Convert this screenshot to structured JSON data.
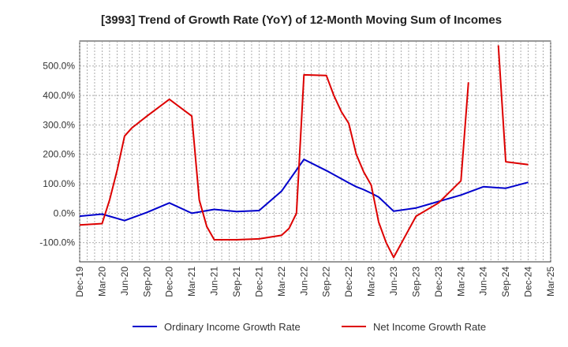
{
  "chart_data": {
    "type": "line",
    "title": "[3993]  Trend of Growth Rate (YoY) of 12-Month Moving Sum of Incomes",
    "xlabel": "",
    "ylabel": "",
    "x_ticks": [
      "Dec-19",
      "Mar-20",
      "Jun-20",
      "Sep-20",
      "Dec-20",
      "Mar-21",
      "Jun-21",
      "Sep-21",
      "Dec-21",
      "Mar-22",
      "Jun-22",
      "Sep-22",
      "Dec-22",
      "Mar-23",
      "Jun-23",
      "Sep-23",
      "Dec-23",
      "Mar-24",
      "Jun-24",
      "Sep-24",
      "Dec-24",
      "Mar-25"
    ],
    "y_ticks": [
      "-100.0%",
      "0.0%",
      "100.0%",
      "200.0%",
      "300.0%",
      "400.0%",
      "500.0%"
    ],
    "y_tick_values": [
      -100,
      0,
      100,
      200,
      300,
      400,
      500
    ],
    "ylim": [
      -165,
      585
    ],
    "x_count": 64,
    "grid": true,
    "legend_position": "bottom",
    "series": [
      {
        "name": "Ordinary Income Growth Rate",
        "color": "#0000cc",
        "points": [
          [
            0,
            -10
          ],
          [
            3,
            -3
          ],
          [
            6,
            -25
          ],
          [
            9,
            3
          ],
          [
            12,
            35
          ],
          [
            15,
            0
          ],
          [
            18,
            13
          ],
          [
            21,
            6
          ],
          [
            24,
            9
          ],
          [
            27,
            75
          ],
          [
            30,
            183
          ],
          [
            33,
            145
          ],
          [
            36,
            103
          ],
          [
            37,
            90
          ],
          [
            38,
            80
          ],
          [
            39,
            68
          ],
          [
            40,
            55
          ],
          [
            42,
            7
          ],
          [
            45,
            18
          ],
          [
            48,
            40
          ],
          [
            51,
            62
          ],
          [
            54,
            90
          ],
          [
            57,
            85
          ],
          [
            60,
            105
          ]
        ]
      },
      {
        "name": "Net Income Growth Rate",
        "color": "#dd0000",
        "points": [
          [
            0,
            -40
          ],
          [
            3,
            -35
          ],
          [
            4,
            45
          ],
          [
            5,
            145
          ],
          [
            6,
            262
          ],
          [
            7,
            290
          ],
          [
            9,
            330
          ],
          [
            12,
            387
          ],
          [
            15,
            330
          ],
          [
            16,
            45
          ],
          [
            17,
            -45
          ],
          [
            18,
            -90
          ],
          [
            21,
            -90
          ],
          [
            24,
            -87
          ],
          [
            27,
            -75
          ],
          [
            28,
            -52
          ],
          [
            29,
            0
          ],
          [
            30,
            470
          ],
          [
            33,
            468
          ],
          [
            34,
            400
          ],
          [
            35,
            345
          ],
          [
            36,
            305
          ],
          [
            37,
            200
          ],
          [
            38,
            140
          ],
          [
            39,
            95
          ],
          [
            40,
            -30
          ],
          [
            41,
            -100
          ],
          [
            42,
            -150
          ],
          [
            45,
            -10
          ],
          [
            48,
            35
          ],
          [
            51,
            110
          ],
          [
            52,
            445
          ],
          null,
          [
            56,
            570
          ],
          [
            57,
            175
          ],
          [
            60,
            165
          ]
        ]
      }
    ]
  }
}
